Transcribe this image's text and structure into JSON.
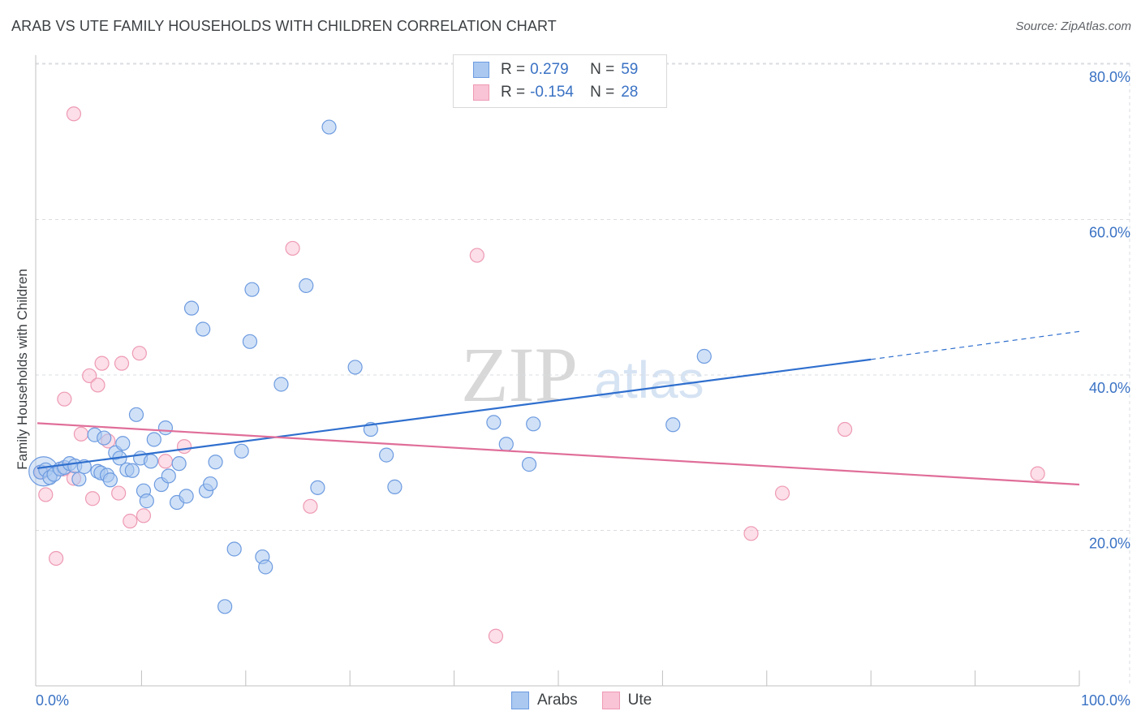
{
  "title": "ARAB VS UTE FAMILY HOUSEHOLDS WITH CHILDREN CORRELATION CHART",
  "source": "Source: ZipAtlas.com",
  "watermark": {
    "zip": "ZIP",
    "atlas": "atlas"
  },
  "legend": {
    "series": [
      {
        "r_label": "R =",
        "r_value": "0.279",
        "n_label": "N =",
        "n_value": "59",
        "fill": "#aac8f0",
        "stroke": "#6d9be0"
      },
      {
        "r_label": "R =",
        "r_value": "-0.154",
        "n_label": "N =",
        "n_value": "28",
        "fill": "#f9c4d5",
        "stroke": "#ee9ab4"
      }
    ]
  },
  "bottom_legend": {
    "arabs": "Arabs",
    "ute": "Ute"
  },
  "colors": {
    "arab_fill": "#aac8f0",
    "arab_stroke": "#6d9be0",
    "arab_line": "#2f6fce",
    "ute_fill": "#f9c4d5",
    "ute_stroke": "#ee9ab4",
    "ute_line": "#e06e99",
    "axis_label": "#3a72c4",
    "grid": "#dadce0"
  },
  "chart_data": {
    "type": "scatter",
    "title": "ARAB VS UTE FAMILY HOUSEHOLDS WITH CHILDREN CORRELATION CHART",
    "xlabel": "",
    "ylabel": "Family Households with Children",
    "xlim": [
      0,
      100
    ],
    "ylim": [
      0,
      82
    ],
    "x_tick_labels": [
      "0.0%",
      "100.0%"
    ],
    "y_ticks": [
      20,
      40,
      60,
      80
    ],
    "y_tick_labels": [
      "20.0%",
      "40.0%",
      "60.0%",
      "80.0%"
    ],
    "grid": true,
    "series": [
      {
        "name": "Arabs",
        "r": 0.279,
        "n": 59,
        "trend": {
          "x0": 0,
          "y0": 28.0,
          "x1": 80,
          "y1": 42.0,
          "dashed_to_x": 100,
          "dashed_to_y": 45.6
        },
        "points": [
          [
            0.3,
            27.5
          ],
          [
            0.8,
            27.8
          ],
          [
            1.2,
            26.8
          ],
          [
            1.6,
            27.2
          ],
          [
            2.2,
            27.9
          ],
          [
            2.6,
            28.1
          ],
          [
            3.1,
            28.6
          ],
          [
            3.6,
            28.3
          ],
          [
            4.0,
            26.6
          ],
          [
            4.5,
            28.2
          ],
          [
            5.5,
            32.3
          ],
          [
            5.8,
            27.6
          ],
          [
            6.1,
            27.4
          ],
          [
            6.4,
            31.9
          ],
          [
            6.7,
            27.1
          ],
          [
            7.0,
            26.5
          ],
          [
            7.5,
            30.0
          ],
          [
            7.9,
            29.3
          ],
          [
            8.2,
            31.2
          ],
          [
            8.6,
            27.8
          ],
          [
            9.1,
            27.7
          ],
          [
            9.5,
            34.9
          ],
          [
            9.9,
            29.3
          ],
          [
            10.2,
            25.1
          ],
          [
            10.5,
            23.8
          ],
          [
            10.9,
            28.9
          ],
          [
            11.2,
            31.7
          ],
          [
            11.9,
            25.9
          ],
          [
            12.3,
            33.2
          ],
          [
            12.6,
            27.0
          ],
          [
            13.4,
            23.6
          ],
          [
            13.6,
            28.6
          ],
          [
            14.3,
            24.4
          ],
          [
            14.8,
            48.6
          ],
          [
            15.9,
            45.9
          ],
          [
            16.2,
            25.1
          ],
          [
            16.6,
            26.0
          ],
          [
            17.1,
            28.8
          ],
          [
            18.0,
            10.2
          ],
          [
            18.9,
            17.6
          ],
          [
            19.6,
            30.2
          ],
          [
            20.4,
            44.3
          ],
          [
            20.6,
            51.0
          ],
          [
            21.6,
            16.6
          ],
          [
            21.9,
            15.3
          ],
          [
            23.4,
            38.8
          ],
          [
            25.8,
            51.5
          ],
          [
            26.9,
            25.5
          ],
          [
            28.0,
            71.9
          ],
          [
            30.5,
            41.0
          ],
          [
            32.0,
            33.0
          ],
          [
            33.5,
            29.7
          ],
          [
            34.3,
            25.6
          ],
          [
            43.8,
            33.9
          ],
          [
            45.0,
            31.1
          ],
          [
            47.2,
            28.5
          ],
          [
            47.6,
            33.7
          ],
          [
            61.0,
            33.6
          ],
          [
            64.0,
            42.4
          ]
        ]
      },
      {
        "name": "Ute",
        "r": -0.154,
        "n": 28,
        "trend": {
          "x0": 0,
          "y0": 33.8,
          "x1": 100,
          "y1": 25.9
        },
        "points": [
          [
            0.4,
            27.5
          ],
          [
            0.8,
            24.6
          ],
          [
            1.8,
            16.4
          ],
          [
            2.5,
            27.9
          ],
          [
            2.6,
            36.9
          ],
          [
            3.5,
            26.7
          ],
          [
            3.5,
            73.6
          ],
          [
            4.2,
            32.4
          ],
          [
            5.0,
            39.9
          ],
          [
            5.3,
            24.1
          ],
          [
            5.8,
            38.7
          ],
          [
            6.2,
            41.5
          ],
          [
            6.8,
            31.5
          ],
          [
            7.8,
            24.8
          ],
          [
            8.1,
            41.5
          ],
          [
            8.9,
            21.2
          ],
          [
            9.8,
            42.8
          ],
          [
            10.2,
            21.9
          ],
          [
            12.3,
            28.9
          ],
          [
            14.1,
            30.8
          ],
          [
            24.5,
            56.3
          ],
          [
            26.2,
            23.1
          ],
          [
            42.2,
            55.4
          ],
          [
            44.0,
            6.4
          ],
          [
            68.5,
            19.6
          ],
          [
            71.5,
            24.8
          ],
          [
            77.5,
            33.0
          ],
          [
            96.0,
            27.3
          ]
        ]
      }
    ]
  }
}
